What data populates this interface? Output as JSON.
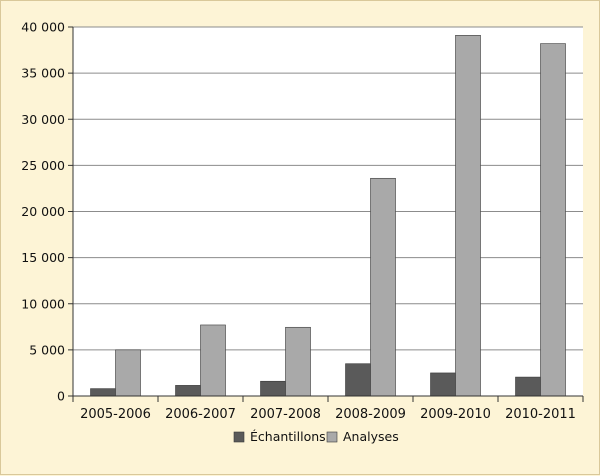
{
  "chart_data": {
    "type": "bar",
    "categories": [
      "2005-2006",
      "2006-2007",
      "2007-2008",
      "2008-2009",
      "2009-2010",
      "2010-2011"
    ],
    "series": [
      {
        "name": "Échantillons",
        "color": "#5a5a5a",
        "values": [
          800,
          1150,
          1600,
          3500,
          2500,
          2050
        ]
      },
      {
        "name": "Analyses",
        "color": "#a9a9a9",
        "values": [
          5000,
          7700,
          7450,
          23600,
          39100,
          38200
        ]
      }
    ],
    "title": "",
    "xlabel": "",
    "ylabel": "",
    "ylim": [
      0,
      40000
    ],
    "yticks": [
      0,
      5000,
      10000,
      15000,
      20000,
      25000,
      30000,
      35000,
      40000
    ],
    "ytick_labels": [
      "0",
      "5 000",
      "10 000",
      "15 000",
      "20 000",
      "25 000",
      "30 000",
      "35 000",
      "40 000"
    ],
    "grid": true,
    "legend_position": "bottom",
    "plot_background": "#ffffff"
  }
}
